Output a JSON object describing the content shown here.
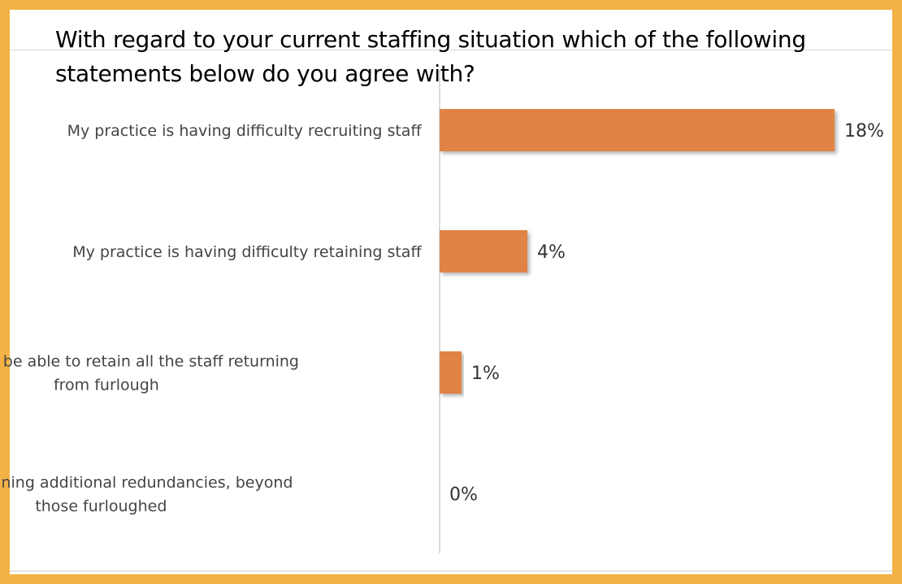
{
  "slide": {
    "title": "With regard to your current staffing situation which of the following statements below do you agree with?"
  },
  "colors": {
    "frame": "#F2B245",
    "bar": "#E08344",
    "axis": "#D0D0D0"
  },
  "chart_data": {
    "type": "bar",
    "orientation": "horizontal",
    "title": "",
    "xlabel": "",
    "ylabel": "",
    "grid": false,
    "legend": "none",
    "xlim": [
      0,
      18
    ],
    "categories": [
      [
        "My practice is having difficulty recruiting staff"
      ],
      [
        "My practice is having difficulty retaining staff"
      ],
      [
        "We will not be able to retain all the staff returning",
        "from furlough"
      ],
      [
        "We are planning additional redundancies, beyond",
        "those furloughed"
      ]
    ],
    "values": [
      18,
      4,
      1,
      0
    ],
    "value_labels": [
      "18%",
      "4%",
      "1%",
      "0%"
    ]
  }
}
